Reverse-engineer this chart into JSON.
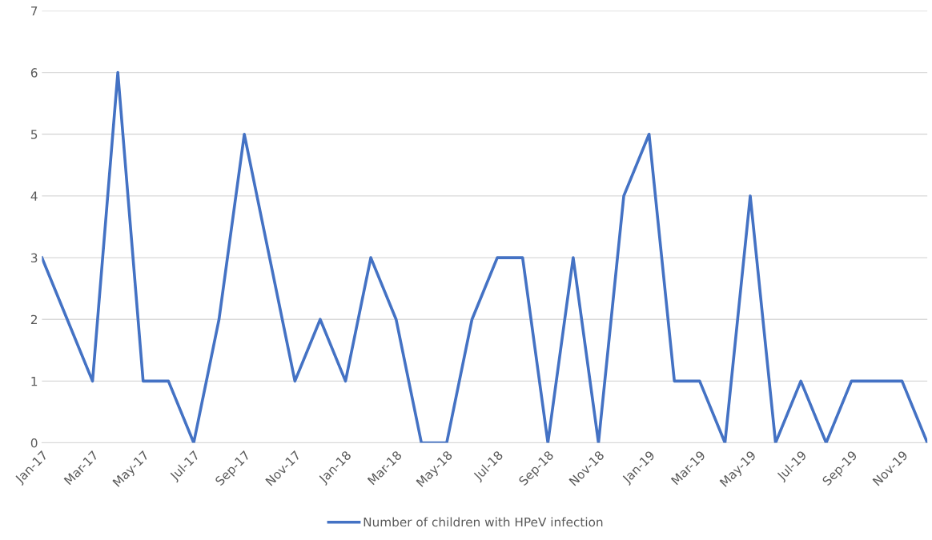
{
  "chart_data": {
    "type": "line",
    "categories": [
      "Jan-17",
      null,
      "Mar-17",
      null,
      "May-17",
      null,
      "Jul-17",
      null,
      "Sep-17",
      null,
      "Nov-17",
      null,
      "Jan-18",
      null,
      "Mar-18",
      null,
      "May-18",
      null,
      "Jul-18",
      null,
      "Sep-18",
      null,
      "Nov-18",
      null,
      "Jan-19",
      null,
      "Mar-19",
      null,
      "May-19",
      null,
      "Jul-19",
      null,
      "Sep-19",
      null,
      "Nov-19",
      null
    ],
    "series": [
      {
        "name": "Number of children with HPeV infection",
        "color": "#4472c4",
        "values": [
          3,
          2,
          1,
          6,
          1,
          1,
          0,
          2,
          5,
          3,
          1,
          2,
          1,
          3,
          2,
          0,
          0,
          2,
          3,
          3,
          0,
          3,
          0,
          4,
          5,
          1,
          1,
          0,
          4,
          0,
          1,
          0,
          1,
          1,
          1,
          0
        ]
      }
    ],
    "ylim": [
      0,
      7
    ],
    "yticks": [
      0,
      1,
      2,
      3,
      4,
      5,
      6,
      7
    ],
    "grid": "y",
    "legend": "bottom",
    "marker": "none",
    "line_style": "solid"
  }
}
